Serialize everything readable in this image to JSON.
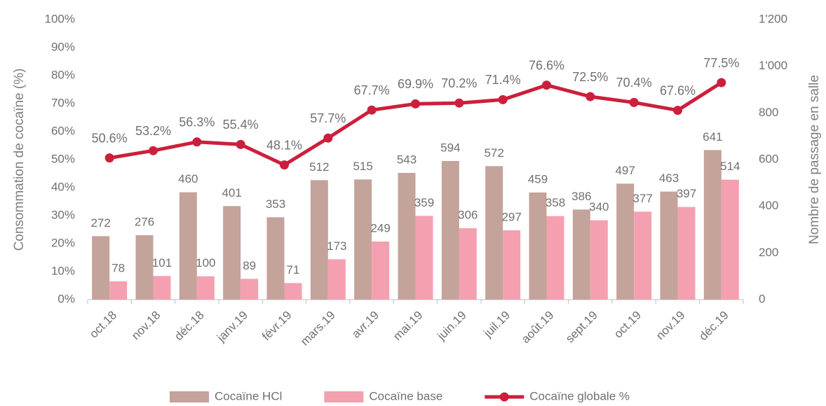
{
  "chart_data": {
    "type": "bar",
    "y_label": "Consommation de cocaïne (%)",
    "y2_label": "Nombre de passage en salle",
    "categories": [
      "oct.18",
      "nov.18",
      "déc.18",
      "janv.19",
      "févr.19",
      "mars.19",
      "avr.19",
      "mai.19",
      "juin.19",
      "juil.19",
      "août.19",
      "sept.19",
      "oct.19",
      "nov.19",
      "déc.19"
    ],
    "series": [
      {
        "name": "Cocaïne HCl",
        "type": "bar",
        "axis": "y2",
        "color": "#c4a39a",
        "values": [
          272,
          276,
          460,
          401,
          353,
          512,
          515,
          543,
          594,
          572,
          459,
          386,
          497,
          463,
          641
        ]
      },
      {
        "name": "Cocaïne base",
        "type": "bar",
        "axis": "y2",
        "color": "#f4a0b0",
        "values": [
          78,
          101,
          100,
          89,
          71,
          173,
          249,
          359,
          306,
          297,
          358,
          340,
          377,
          397,
          514
        ]
      },
      {
        "name": "Cocaïne globale %",
        "type": "line",
        "color": "#cc1f3c",
        "values": [
          50.6,
          53.2,
          56.3,
          55.4,
          48.1,
          57.7,
          67.7,
          69.9,
          70.2,
          71.4,
          76.6,
          72.5,
          70.4,
          67.6,
          77.5
        ],
        "value_labels": [
          "50.6%",
          "53.2%",
          "56.3%",
          "55.4%",
          "48.1%",
          "57.7%",
          "67.7%",
          "69.9%",
          "70.2%",
          "71.4%",
          "76.6%",
          "72.5%",
          "70.4%",
          "67.6%",
          "77.5%"
        ]
      }
    ],
    "ylim": [
      0,
      100
    ],
    "yticks": [
      {
        "value": 0,
        "label": "0%"
      },
      {
        "value": 10,
        "label": "10%"
      },
      {
        "value": 20,
        "label": "20%"
      },
      {
        "value": 30,
        "label": "30%"
      },
      {
        "value": 40,
        "label": "40%"
      },
      {
        "value": 50,
        "label": "50%"
      },
      {
        "value": 60,
        "label": "60%"
      },
      {
        "value": 70,
        "label": "70%"
      },
      {
        "value": 80,
        "label": "80%"
      },
      {
        "value": 90,
        "label": "90%"
      },
      {
        "value": 100,
        "label": "100%"
      }
    ],
    "y2lim": [
      0,
      1200
    ],
    "y2ticks": [
      0,
      200,
      400,
      600,
      800,
      {
        "value": 1000,
        "label": "1'000"
      },
      {
        "value": 1200,
        "label": "1'200"
      }
    ],
    "grid": false,
    "legend": "bottom"
  }
}
